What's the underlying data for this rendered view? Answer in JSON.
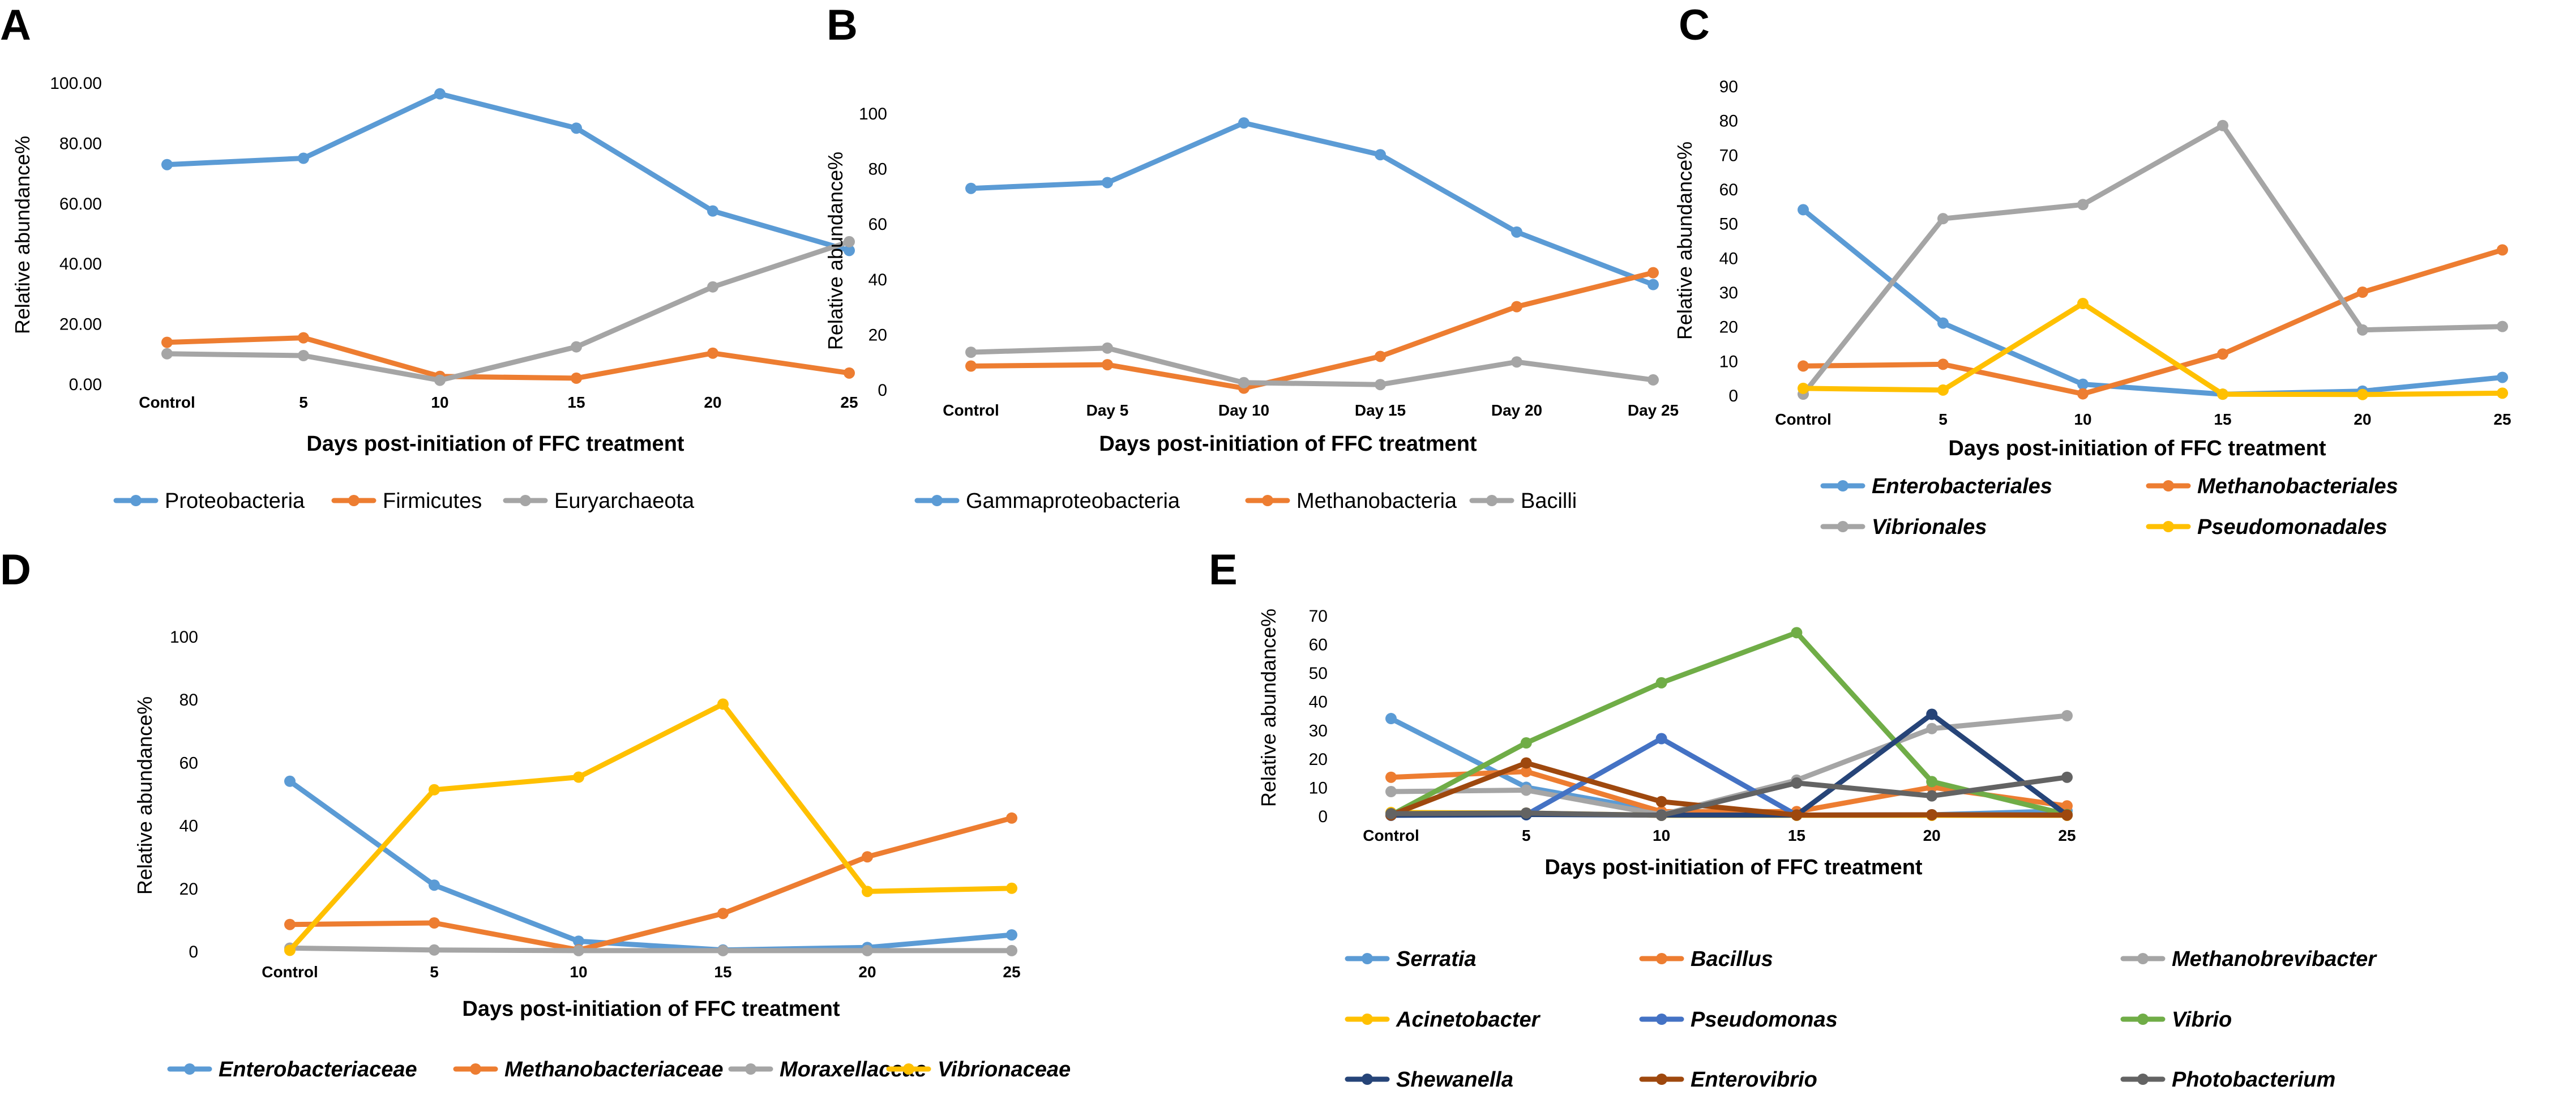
{
  "chart_data": [
    {
      "panel": "A",
      "type": "line",
      "categories": [
        "Control",
        "5",
        "10",
        "15",
        "20",
        "25"
      ],
      "ylim": [
        0,
        100
      ],
      "yticks": [
        "0.00",
        "20.00",
        "40.00",
        "60.00",
        "80.00",
        "100.00"
      ],
      "ylabel": "Relative abundance%",
      "xlabel": "Days post-initiation of FFC treatment",
      "legend_italic": false,
      "series": [
        {
          "name": "Proteobacteria",
          "color": "#5B9BD5",
          "values": [
            72.8,
            74.9,
            96.3,
            84.9,
            57.4,
            44.3
          ]
        },
        {
          "name": "Firmicutes",
          "color": "#ED7D31",
          "values": [
            13.8,
            15.3,
            2.5,
            1.9,
            10.2,
            3.6
          ]
        },
        {
          "name": "Euryarchaeota",
          "color": "#A5A5A5",
          "values": [
            10.0,
            9.4,
            1.2,
            12.3,
            32.2,
            47.2
          ]
        }
      ]
    },
    {
      "panel": "B",
      "type": "line",
      "categories": [
        "Control",
        "Day 5",
        "Day 10",
        "Day 15",
        "Day 20",
        "Day 25"
      ],
      "ylim": [
        0,
        100
      ],
      "yticks": [
        "0",
        "20",
        "40",
        "60",
        "80",
        "100"
      ],
      "ylabel": "Relative abundance%",
      "xlabel": "Days post-initiation of FFC treatment",
      "legend_italic": false,
      "series": [
        {
          "name": "Gammaproteobacteria",
          "color": "#5B9BD5",
          "values": [
            72.8,
            74.9,
            96.5,
            85.0,
            57.0,
            38.0
          ]
        },
        {
          "name": "Methanobacteria",
          "color": "#ED7D31",
          "values": [
            8.5,
            9.0,
            0.5,
            12.0,
            30.0,
            42.3
          ]
        },
        {
          "name": "Bacilli",
          "color": "#A5A5A5",
          "values": [
            13.5,
            15.0,
            2.5,
            1.8,
            10.0,
            3.5
          ]
        }
      ]
    },
    {
      "panel": "C",
      "type": "line",
      "categories": [
        "Control",
        "5",
        "10",
        "15",
        "20",
        "25"
      ],
      "ylim": [
        0,
        90
      ],
      "yticks": [
        "0",
        "10",
        "20",
        "30",
        "40",
        "50",
        "60",
        "70",
        "80",
        "90"
      ],
      "ylabel": "Relative abundance%",
      "xlabel": "Days post-initiation of FFC treatment",
      "legend_italic": true,
      "series": [
        {
          "name": "Enterobacteriales",
          "color": "#5B9BD5",
          "values": [
            54.0,
            21.0,
            3.2,
            0.3,
            1.2,
            5.2
          ]
        },
        {
          "name": "Methanobacteriales",
          "color": "#ED7D31",
          "values": [
            8.5,
            9.0,
            0.4,
            12.0,
            30.0,
            42.3
          ]
        },
        {
          "name": "Vibrionales",
          "color": "#A5A5A5",
          "values": [
            0.3,
            51.4,
            55.5,
            78.5,
            19.0,
            20.0
          ]
        },
        {
          "name": "Pseudomonadales",
          "color": "#FFC000",
          "values": [
            2.0,
            1.5,
            26.7,
            0.3,
            0.2,
            0.6
          ]
        }
      ]
    },
    {
      "panel": "D",
      "type": "line",
      "categories": [
        "Control",
        "5",
        "10",
        "15",
        "20",
        "25"
      ],
      "ylim": [
        0,
        100
      ],
      "yticks": [
        "0",
        "20",
        "40",
        "60",
        "80",
        "100"
      ],
      "ylabel": "Relative abundance%",
      "xlabel": "Days post-initiation of FFC treatment",
      "legend_italic": true,
      "series": [
        {
          "name": "Enterobacteriaceae",
          "color": "#5B9BD5",
          "values": [
            54.0,
            21.0,
            3.2,
            0.4,
            1.2,
            5.2
          ]
        },
        {
          "name": "Methanobacteriaceae",
          "color": "#ED7D31",
          "values": [
            8.5,
            9.0,
            0.4,
            12.0,
            30.0,
            42.3
          ]
        },
        {
          "name": "Moraxellaceae",
          "color": "#A5A5A5",
          "values": [
            1.0,
            0.4,
            0.2,
            0.2,
            0.2,
            0.2
          ]
        },
        {
          "name": "Vibrionaceae",
          "color": "#FFC000",
          "values": [
            0.3,
            51.3,
            55.3,
            78.5,
            19.0,
            20.0
          ]
        }
      ]
    },
    {
      "panel": "E",
      "type": "line",
      "categories": [
        "Control",
        "5",
        "10",
        "15",
        "20",
        "25"
      ],
      "ylim": [
        0,
        70
      ],
      "yticks": [
        "0",
        "10",
        "20",
        "30",
        "40",
        "50",
        "60",
        "70"
      ],
      "ylabel": "Relative abundance%",
      "xlabel": "Days post-initiation of FFC treatment",
      "legend_italic": true,
      "series": [
        {
          "name": "Serratia",
          "color": "#5B9BD5",
          "values": [
            34.0,
            10.0,
            1.5,
            0.3,
            0.4,
            1.8
          ]
        },
        {
          "name": "Bacillus",
          "color": "#ED7D31",
          "values": [
            13.5,
            15.5,
            1.5,
            1.5,
            10.0,
            3.5
          ]
        },
        {
          "name": "Methanobrevibacter",
          "color": "#A5A5A5",
          "values": [
            8.5,
            9.0,
            0.4,
            12.5,
            30.5,
            35.0
          ]
        },
        {
          "name": "Acinetobacter",
          "color": "#FFC000",
          "values": [
            1.2,
            1.0,
            0.2,
            0.2,
            0.2,
            0.2
          ]
        },
        {
          "name": "Pseudomonas",
          "color": "#4472C4",
          "values": [
            0.2,
            0.4,
            27.0,
            0.3,
            0.4,
            0.4
          ]
        },
        {
          "name": "Vibrio",
          "color": "#70AD47",
          "values": [
            0.3,
            25.5,
            46.5,
            64.0,
            12.0,
            0.5
          ]
        },
        {
          "name": "Shewanella",
          "color": "#264478",
          "values": [
            0.3,
            0.5,
            0.3,
            0.3,
            35.5,
            0.3
          ]
        },
        {
          "name": "Enterovibrio",
          "color": "#9E480E",
          "values": [
            0.3,
            18.5,
            5.0,
            0.3,
            0.4,
            0.3
          ]
        },
        {
          "name": "Photobacterium",
          "color": "#636363",
          "values": [
            0.8,
            1.0,
            0.2,
            11.5,
            7.0,
            13.5
          ]
        }
      ]
    }
  ]
}
